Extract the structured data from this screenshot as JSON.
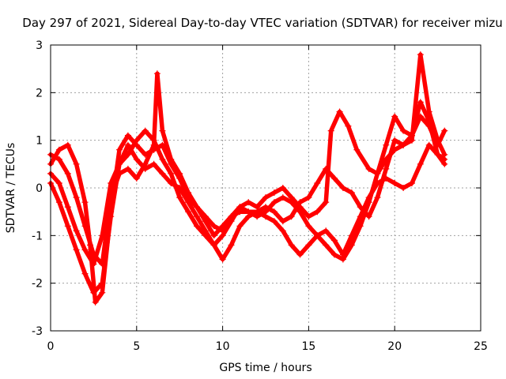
{
  "chart_data": {
    "type": "scatter",
    "title": "Day 297 of 2021, Sidereal Day-to-day VTEC variation (SDTVAR) for receiver mizu",
    "xlabel": "GPS time / hours",
    "ylabel": "SDTVAR / TECUs",
    "xlim": [
      0,
      25
    ],
    "ylim": [
      -3,
      3
    ],
    "xticks": [
      0,
      5,
      10,
      15,
      20,
      25
    ],
    "yticks": [
      -3,
      -2,
      -1,
      0,
      1,
      2,
      3
    ],
    "grid": true,
    "marker": "plus",
    "series_color": "#ff0000",
    "series": [
      {
        "x": [
          0,
          0.5,
          1,
          1.5,
          2,
          2.3,
          2.6,
          3,
          3.5,
          4,
          4.5,
          5,
          5.5,
          6,
          6.5,
          7,
          7.5,
          8,
          8.5,
          9,
          9.5,
          10,
          10.5,
          11,
          11.5,
          12,
          12.5,
          13,
          13.5,
          14,
          14.5,
          15,
          15.5,
          16,
          16.5,
          17,
          17.5,
          18,
          18.5,
          19,
          19.5,
          20,
          20.5,
          21,
          21.5,
          22,
          22.5,
          22.9
        ],
        "y": [
          0.5,
          0.8,
          0.9,
          0.5,
          -0.3,
          -1.2,
          -2.4,
          -2.2,
          -0.5,
          0.8,
          1.1,
          0.9,
          0.7,
          0.8,
          0.9,
          0.5,
          0.2,
          -0.2,
          -0.4,
          -0.6,
          -0.8,
          -0.9,
          -0.6,
          -0.5,
          -0.5,
          -0.6,
          -0.5,
          -0.3,
          -0.2,
          -0.3,
          -0.5,
          -0.8,
          -1.0,
          -1.2,
          -1.4,
          -1.5,
          -1.2,
          -0.8,
          -0.3,
          0.3,
          0.9,
          1.5,
          1.2,
          1.1,
          1.8,
          1.4,
          0.7,
          0.6
        ]
      },
      {
        "x": [
          0,
          0.5,
          1,
          1.5,
          2,
          2.5,
          3,
          3.5,
          4,
          4.5,
          5,
          5.5,
          6,
          6.5,
          7,
          7.5,
          8,
          8.5,
          9,
          9.5,
          10,
          10.5,
          11,
          11.5,
          12,
          12.5,
          13,
          13.5,
          14,
          14.5,
          15,
          15.5,
          16,
          16.5,
          17,
          17.5,
          18,
          18.5,
          19,
          19.5,
          20,
          20.5,
          21,
          21.5,
          22,
          22.5,
          22.9
        ],
        "y": [
          0.1,
          -0.3,
          -0.8,
          -1.3,
          -1.8,
          -2.2,
          -2.0,
          -0.6,
          0.5,
          0.9,
          0.6,
          0.4,
          0.5,
          0.3,
          0.1,
          0.0,
          -0.3,
          -0.6,
          -0.9,
          -1.2,
          -1.5,
          -1.2,
          -0.8,
          -0.6,
          -0.5,
          -0.6,
          -0.7,
          -0.9,
          -1.2,
          -1.4,
          -1.2,
          -1.0,
          -0.9,
          -1.1,
          -1.4,
          -1.0,
          -0.6,
          -0.2,
          0.1,
          0.2,
          0.1,
          0.0,
          0.1,
          0.5,
          0.9,
          0.7,
          0.5
        ]
      },
      {
        "x": [
          0,
          0.5,
          1,
          1.5,
          2,
          2.5,
          3,
          3.5,
          4,
          4.5,
          5,
          5.5,
          6,
          6.2,
          6.5,
          7,
          7.5,
          8,
          8.5,
          9,
          9.5,
          10,
          10.5,
          11,
          11.5,
          12,
          12.5,
          13,
          13.5,
          14,
          14.5,
          15,
          15.5,
          16,
          16.5,
          17,
          17.5,
          18,
          18.5,
          19,
          19.5,
          20,
          20.5,
          21,
          21.5,
          22,
          22.5,
          22.9
        ],
        "y": [
          0.7,
          0.6,
          0.3,
          -0.2,
          -0.8,
          -1.4,
          -1.6,
          -0.2,
          0.3,
          0.4,
          0.2,
          0.5,
          0.9,
          2.4,
          1.2,
          0.6,
          0.3,
          -0.1,
          -0.4,
          -0.7,
          -1.0,
          -0.8,
          -0.6,
          -0.4,
          -0.5,
          -0.5,
          -0.4,
          -0.5,
          -0.7,
          -0.6,
          -0.3,
          -0.2,
          0.1,
          0.4,
          0.2,
          0.0,
          -0.1,
          -0.4,
          -0.6,
          -0.2,
          0.4,
          1.0,
          0.9,
          1.1,
          1.5,
          1.3,
          0.9,
          1.2
        ]
      },
      {
        "x": [
          0,
          0.5,
          1,
          1.5,
          2,
          2.5,
          3,
          3.5,
          4,
          4.5,
          5,
          5.5,
          6,
          6.5,
          7,
          7.5,
          8,
          8.5,
          9,
          9.5,
          10,
          10.5,
          11,
          11.5,
          12,
          12.5,
          13,
          13.5,
          14,
          14.5,
          15,
          15.5,
          16,
          16.3,
          16.8,
          17.3,
          17.8,
          18.5,
          19,
          19.5,
          20,
          20.5,
          21,
          21.5,
          22,
          22.5,
          22.9
        ],
        "y": [
          0.3,
          0.1,
          -0.4,
          -0.9,
          -1.3,
          -1.6,
          -1.0,
          0.1,
          0.5,
          0.7,
          1.0,
          1.2,
          1.0,
          0.6,
          0.3,
          -0.2,
          -0.5,
          -0.8,
          -1.0,
          -1.2,
          -1.0,
          -0.7,
          -0.4,
          -0.3,
          -0.4,
          -0.2,
          -0.1,
          0.0,
          -0.2,
          -0.4,
          -0.6,
          -0.5,
          -0.3,
          1.2,
          1.6,
          1.3,
          0.8,
          0.4,
          0.3,
          0.6,
          0.8,
          0.9,
          1.0,
          2.8,
          1.6,
          1.0,
          0.7
        ]
      }
    ]
  }
}
